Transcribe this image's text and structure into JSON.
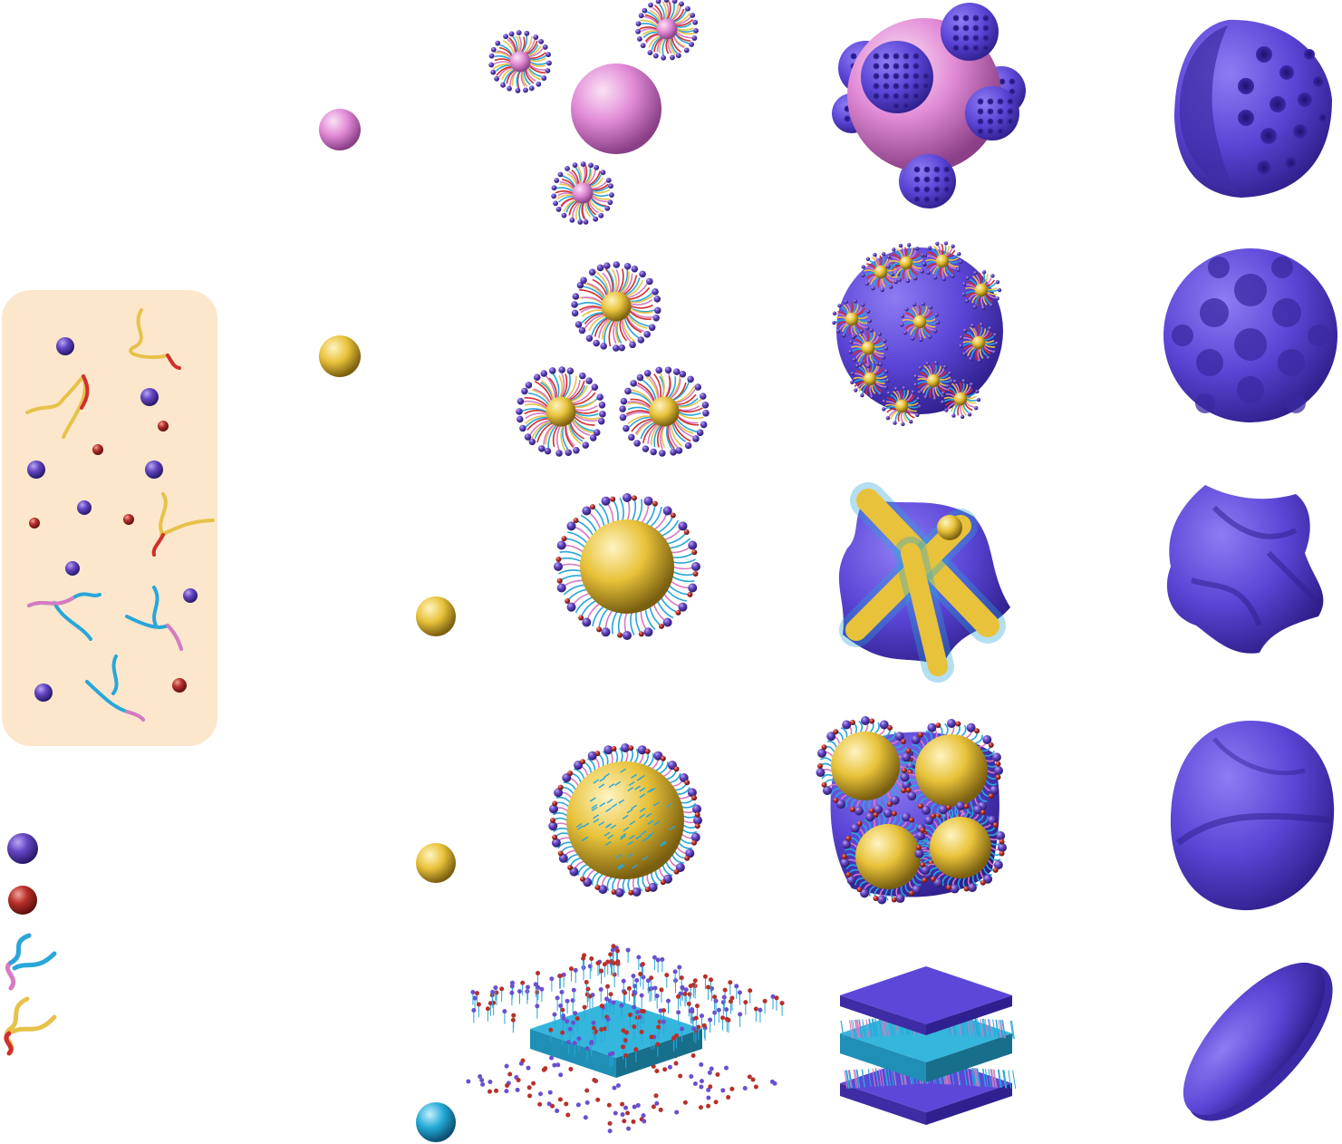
{
  "colors": {
    "background": "#ffffff",
    "panel": "#fde7cc",
    "monomer_purple": "#5b3fb5",
    "monomer_red": "#b8302a",
    "core_pink": "#e089d6",
    "core_yellow": "#e9c43a",
    "core_cyan": "#22a9d6",
    "chain_yellow": "#e7c24a",
    "chain_red": "#d02f2f",
    "chain_blue": "#2aa6d9",
    "chain_pink": "#d77ac0",
    "shell_purple": "#5b48d8"
  },
  "legend": {
    "items": [
      {
        "icon": "purple-bead-icon"
      },
      {
        "icon": "red-bead-icon"
      },
      {
        "icon": "blue-pink-chain-icon"
      },
      {
        "icon": "yellow-red-chain-icon"
      }
    ]
  },
  "rows": [
    {
      "template_core": "pink",
      "stage2": "template-with-micelles",
      "stage3": "template-with-porous-caps",
      "stage4": "porous-cap-shell"
    },
    {
      "template_core": "yellow",
      "stage2": "three-micelles",
      "stage3": "soccer-ball-assembly",
      "stage4": "golf-ball-shell"
    },
    {
      "template_core": "yellow",
      "stage2": "coated-sphere",
      "stage3": "star-shaped-assembly",
      "stage4": "star-shaped-shell"
    },
    {
      "template_core": "yellow",
      "stage2": "densely-coated-sphere",
      "stage3": "clustered-spheres-assembly",
      "stage4": "dimpled-shell"
    },
    {
      "template_core": "cyan",
      "stage2": "bilayer-sheet",
      "stage3": "stacked-sheets",
      "stage4": "flat-disk"
    }
  ]
}
